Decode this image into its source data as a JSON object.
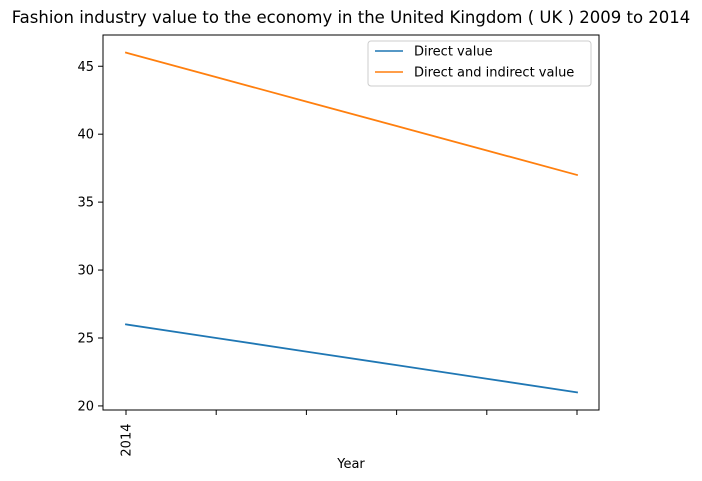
{
  "chart_data": {
    "type": "line",
    "title": "Fashion industry value to the economy in the United Kingdom ( UK ) 2009 to 2014",
    "xlabel": "Year",
    "ylabel": "",
    "x_tick_labels": [
      "2014",
      "",
      "",
      "",
      "",
      ""
    ],
    "yticks": [
      20,
      25,
      30,
      35,
      40,
      45
    ],
    "ylim": [
      19.7,
      47.3
    ],
    "grid": false,
    "legend_position": "top-right",
    "series": [
      {
        "name": "Direct value",
        "color": "#1f77b4",
        "values": [
          26,
          25,
          24,
          23,
          22,
          21
        ]
      },
      {
        "name": "Direct and indirect value",
        "color": "#ff7f0e",
        "values": [
          46,
          44.2,
          42.4,
          40.6,
          38.8,
          37
        ]
      }
    ]
  }
}
